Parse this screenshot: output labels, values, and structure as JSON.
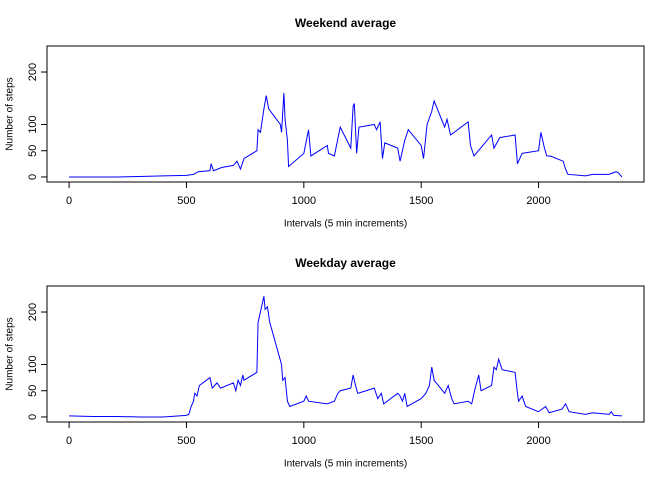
{
  "chart_data": [
    {
      "type": "line",
      "title": "Weekend average",
      "xlabel": "Intervals (5 min increments)",
      "ylabel": "Number of steps",
      "color": "#0000ff",
      "xlim": [
        -94.2,
        2449.2
      ],
      "xticks": [
        0,
        500,
        1000,
        1500,
        2000
      ],
      "ylim": [
        -9.6,
        249.6
      ],
      "yticks": [
        0,
        50,
        100,
        200
      ],
      "x": [
        0,
        100,
        200,
        300,
        400,
        500,
        530,
        550,
        600,
        605,
        615,
        650,
        700,
        715,
        730,
        745,
        800,
        805,
        815,
        830,
        840,
        850,
        900,
        905,
        915,
        920,
        930,
        935,
        1000,
        1020,
        1030,
        1100,
        1105,
        1130,
        1155,
        1200,
        1210,
        1215,
        1225,
        1235,
        1300,
        1310,
        1325,
        1335,
        1345,
        1400,
        1410,
        1430,
        1445,
        1500,
        1510,
        1525,
        1545,
        1555,
        1600,
        1610,
        1625,
        1700,
        1710,
        1725,
        1800,
        1810,
        1835,
        1900,
        1910,
        1930,
        2000,
        2010,
        2025,
        2035,
        2050,
        2105,
        2115,
        2125,
        2200,
        2230,
        2300,
        2330,
        2340,
        2355
      ],
      "values": [
        0,
        0,
        0,
        1,
        2,
        3,
        5,
        10,
        12,
        25,
        12,
        18,
        22,
        30,
        15,
        35,
        50,
        90,
        85,
        130,
        155,
        130,
        100,
        85,
        160,
        110,
        70,
        20,
        45,
        90,
        40,
        60,
        45,
        40,
        95,
        55,
        135,
        140,
        45,
        95,
        100,
        90,
        105,
        35,
        65,
        55,
        30,
        70,
        90,
        60,
        35,
        100,
        125,
        145,
        95,
        110,
        80,
        105,
        60,
        40,
        80,
        55,
        75,
        80,
        25,
        45,
        50,
        85,
        55,
        40,
        40,
        30,
        15,
        5,
        2,
        5,
        5,
        10,
        8,
        0
      ]
    },
    {
      "type": "line",
      "title": "Weekday average",
      "xlabel": "Intervals (5 min increments)",
      "ylabel": "Number of steps",
      "color": "#0000ff",
      "xlim": [
        -94.2,
        2449.2
      ],
      "xticks": [
        0,
        500,
        1000,
        1500,
        2000
      ],
      "ylim": [
        -9.6,
        249.6
      ],
      "yticks": [
        0,
        50,
        100,
        200
      ],
      "x": [
        0,
        100,
        200,
        300,
        400,
        500,
        510,
        520,
        530,
        535,
        545,
        555,
        600,
        610,
        620,
        630,
        645,
        700,
        710,
        720,
        730,
        740,
        745,
        800,
        805,
        815,
        830,
        835,
        845,
        855,
        905,
        910,
        920,
        930,
        940,
        1000,
        1010,
        1020,
        1100,
        1130,
        1145,
        1155,
        1200,
        1210,
        1220,
        1230,
        1300,
        1315,
        1330,
        1340,
        1400,
        1410,
        1420,
        1430,
        1440,
        1500,
        1520,
        1535,
        1545,
        1555,
        1600,
        1615,
        1630,
        1640,
        1700,
        1715,
        1730,
        1745,
        1755,
        1800,
        1810,
        1820,
        1830,
        1845,
        1900,
        1910,
        1915,
        1930,
        1945,
        2000,
        2015,
        2030,
        2045,
        2100,
        2115,
        2130,
        2200,
        2230,
        2300,
        2310,
        2320,
        2355
      ],
      "values": [
        2,
        1,
        1,
        0,
        0,
        3,
        5,
        20,
        30,
        45,
        40,
        60,
        75,
        55,
        60,
        65,
        55,
        65,
        50,
        70,
        60,
        80,
        70,
        85,
        180,
        200,
        230,
        205,
        210,
        180,
        100,
        70,
        75,
        30,
        20,
        30,
        40,
        30,
        25,
        30,
        45,
        50,
        55,
        80,
        60,
        45,
        55,
        35,
        45,
        25,
        45,
        40,
        30,
        45,
        20,
        35,
        45,
        60,
        95,
        70,
        45,
        60,
        35,
        25,
        30,
        25,
        55,
        80,
        50,
        60,
        95,
        90,
        110,
        90,
        85,
        45,
        30,
        40,
        20,
        10,
        15,
        20,
        8,
        15,
        25,
        10,
        5,
        8,
        5,
        10,
        3,
        2
      ]
    }
  ]
}
